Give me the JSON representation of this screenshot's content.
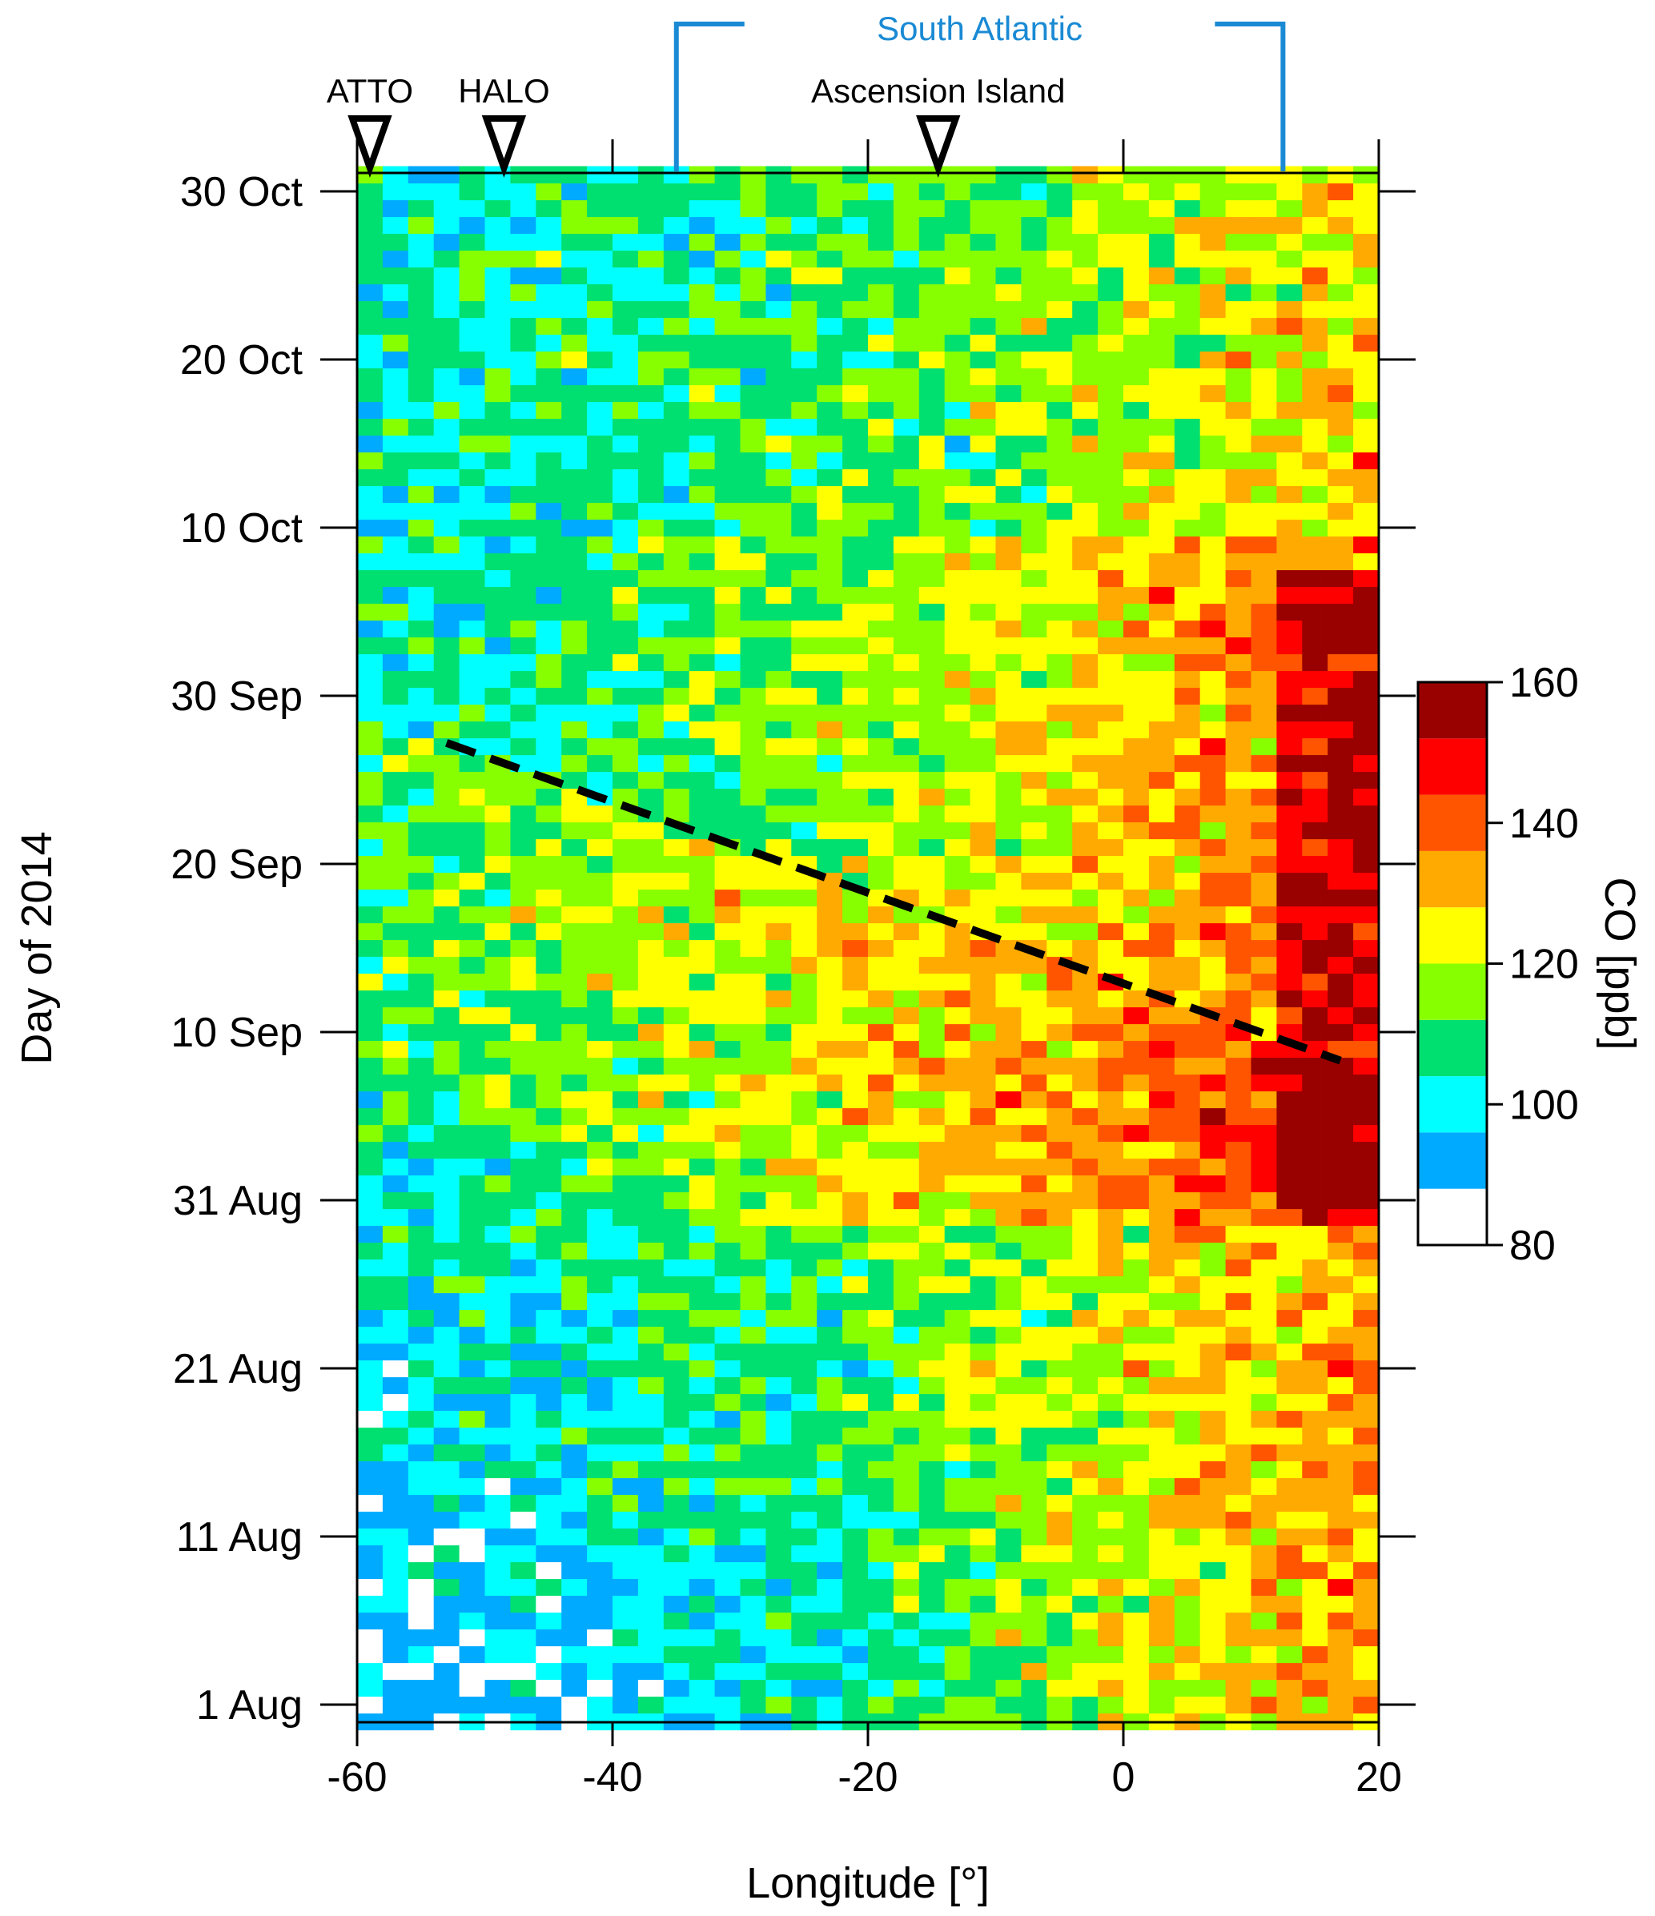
{
  "chart_data": {
    "type": "heatmap",
    "xlabel": "Longitude [°]",
    "ylabel": "Day of 2014",
    "xlim": [
      -60,
      20
    ],
    "x_ticks": [
      "-60",
      "-40",
      "-20",
      "0",
      "20"
    ],
    "x_tick_values": [
      -60,
      -40,
      -20,
      0,
      20
    ],
    "y_ticks": [
      "1 Aug",
      "11 Aug",
      "21 Aug",
      "31 Aug",
      "10 Sep",
      "20 Sep",
      "30 Sep",
      "10 Oct",
      "20 Oct",
      "30 Oct"
    ],
    "y_tick_days": [
      0,
      10,
      20,
      30,
      40,
      50,
      60,
      70,
      80,
      90
    ],
    "ylim_days_since_1_aug": [
      -1,
      91
    ],
    "grid": false,
    "colorbar": {
      "label": "CO [ppb]",
      "range": [
        80,
        160
      ],
      "tick_labels": [
        "80",
        "100",
        "120",
        "140",
        "160"
      ],
      "tick_values": [
        80,
        100,
        120,
        140,
        160
      ],
      "bins": [
        {
          "from": 80,
          "to": 88,
          "color": "#ffffff"
        },
        {
          "from": 88,
          "to": 96,
          "color": "#00aaff"
        },
        {
          "from": 96,
          "to": 104,
          "color": "#00ffff"
        },
        {
          "from": 104,
          "to": 112,
          "color": "#00e070"
        },
        {
          "from": 112,
          "to": 120,
          "color": "#88ff00"
        },
        {
          "from": 120,
          "to": 128,
          "color": "#ffff00"
        },
        {
          "from": 128,
          "to": 136,
          "color": "#ffaa00"
        },
        {
          "from": 136,
          "to": 144,
          "color": "#ff5500"
        },
        {
          "from": 144,
          "to": 152,
          "color": "#ff0000"
        },
        {
          "from": 152,
          "to": 160,
          "color": "#990000"
        }
      ]
    },
    "cell_size": {
      "longitude_deg": 2.0,
      "days": 1
    },
    "field_description": "Daily CO by longitude; low (80-100 ppb) in the west in early August, rising to >150 ppb toward 15-20°E, with a westward-spreading plume from mid-September.",
    "markers": [
      {
        "label": "ATTO",
        "lon": -59.0
      },
      {
        "label": "HALO",
        "lon": -48.5
      },
      {
        "label": "Ascension Island",
        "lon": -14.5
      }
    ],
    "region": {
      "label": "South Atlantic",
      "lon_start": -35,
      "lon_end": 12.5
    },
    "trend_line": {
      "style": "dashed",
      "color": "#000000",
      "points": [
        {
          "lon": -53,
          "day": 57.2
        },
        {
          "lon": 17,
          "day": 38.3
        }
      ]
    }
  }
}
